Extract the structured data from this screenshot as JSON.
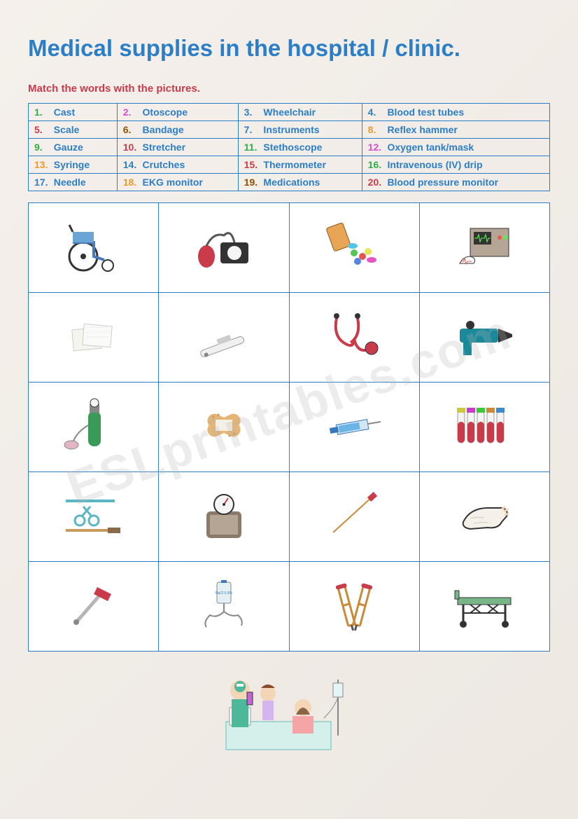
{
  "title": "Medical supplies in the hospital / clinic.",
  "instruction": "Match the words with the pictures.",
  "watermark": "ESLprintables.com",
  "num_colors": {
    "1": "#2eae4a",
    "2": "#d94ec9",
    "3": "#2b7ec8",
    "4": "#2b7ec8",
    "5": "#c93a4a",
    "6": "#964b00",
    "7": "#2b7ec8",
    "8": "#e89b2c",
    "9": "#2eae4a",
    "10": "#c93a4a",
    "11": "#2eae4a",
    "12": "#d94ec9",
    "13": "#e89b2c",
    "14": "#2b7ec8",
    "15": "#c93a4a",
    "16": "#2eae4a",
    "17": "#2b7ec8",
    "18": "#e89b2c",
    "19": "#964b00",
    "20": "#c93a4a"
  },
  "words": [
    [
      {
        "n": "1.",
        "w": "Cast"
      },
      {
        "n": "2.",
        "w": "Otoscope"
      },
      {
        "n": "3.",
        "w": "Wheelchair"
      },
      {
        "n": "4.",
        "w": "Blood test tubes"
      }
    ],
    [
      {
        "n": "5.",
        "w": "Scale"
      },
      {
        "n": "6.",
        "w": "Bandage"
      },
      {
        "n": "7.",
        "w": "Instruments"
      },
      {
        "n": "8.",
        "w": "Reflex hammer"
      }
    ],
    [
      {
        "n": "9.",
        "w": "Gauze"
      },
      {
        "n": "10.",
        "w": "Stretcher"
      },
      {
        "n": "11.",
        "w": "Stethoscope"
      },
      {
        "n": "12.",
        "w": "Oxygen tank/mask"
      }
    ],
    [
      {
        "n": "13.",
        "w": "Syringe"
      },
      {
        "n": "14.",
        "w": "Crutches"
      },
      {
        "n": "15.",
        "w": "Thermometer"
      },
      {
        "n": "16.",
        "w": "Intravenous  (IV)  drip"
      }
    ],
    [
      {
        "n": "17.",
        "w": "Needle"
      },
      {
        "n": "18.",
        "w": "EKG monitor"
      },
      {
        "n": "19.",
        "w": "Medications"
      },
      {
        "n": "20.",
        "w": "Blood pressure monitor"
      }
    ]
  ],
  "pictures": [
    [
      "wheelchair",
      "bp-monitor",
      "medications",
      "ekg-monitor"
    ],
    [
      "gauze",
      "thermometer",
      "stethoscope",
      "otoscope"
    ],
    [
      "oxygen-tank",
      "bandage",
      "syringe",
      "blood-tubes"
    ],
    [
      "instruments",
      "scale",
      "needle",
      "cast"
    ],
    [
      "reflex-hammer",
      "iv-drip",
      "crutches",
      "stretcher"
    ]
  ],
  "colors": {
    "title": "#2b7ec8",
    "instruction": "#c93a4a",
    "border": "#2b7ec8",
    "cell_text": "#2b7ec8",
    "background_start": "#f5f0eb",
    "background_end": "#ede8e2"
  }
}
